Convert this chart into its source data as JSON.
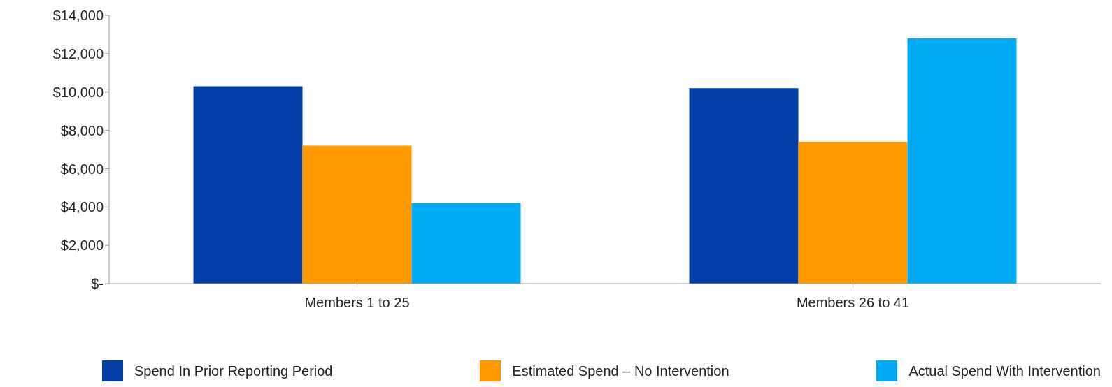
{
  "chart_data": {
    "type": "bar",
    "categories": [
      "Members 1 to 25",
      "Members 26 to 41"
    ],
    "series": [
      {
        "name": "Spend In Prior Reporting Period",
        "color": "#003da5",
        "values": [
          10300,
          10200
        ]
      },
      {
        "name": "Estimated Spend – No Intervention",
        "color": "#ff9900",
        "values": [
          7200,
          7400
        ]
      },
      {
        "name": "Actual Spend With Intervention",
        "color": "#00a9f4",
        "values": [
          4200,
          12800
        ]
      }
    ],
    "ylim": [
      0,
      14000
    ],
    "yticks": [
      {
        "value": 0,
        "label": "$-"
      },
      {
        "value": 2000,
        "label": "$2,000"
      },
      {
        "value": 4000,
        "label": "$4,000"
      },
      {
        "value": 6000,
        "label": "$6,000"
      },
      {
        "value": 8000,
        "label": "$8,000"
      },
      {
        "value": 10000,
        "label": "$10,000"
      },
      {
        "value": 12000,
        "label": "$12,000"
      },
      {
        "value": 14000,
        "label": "$14,000"
      }
    ],
    "grid": false,
    "legend": "bottom"
  }
}
